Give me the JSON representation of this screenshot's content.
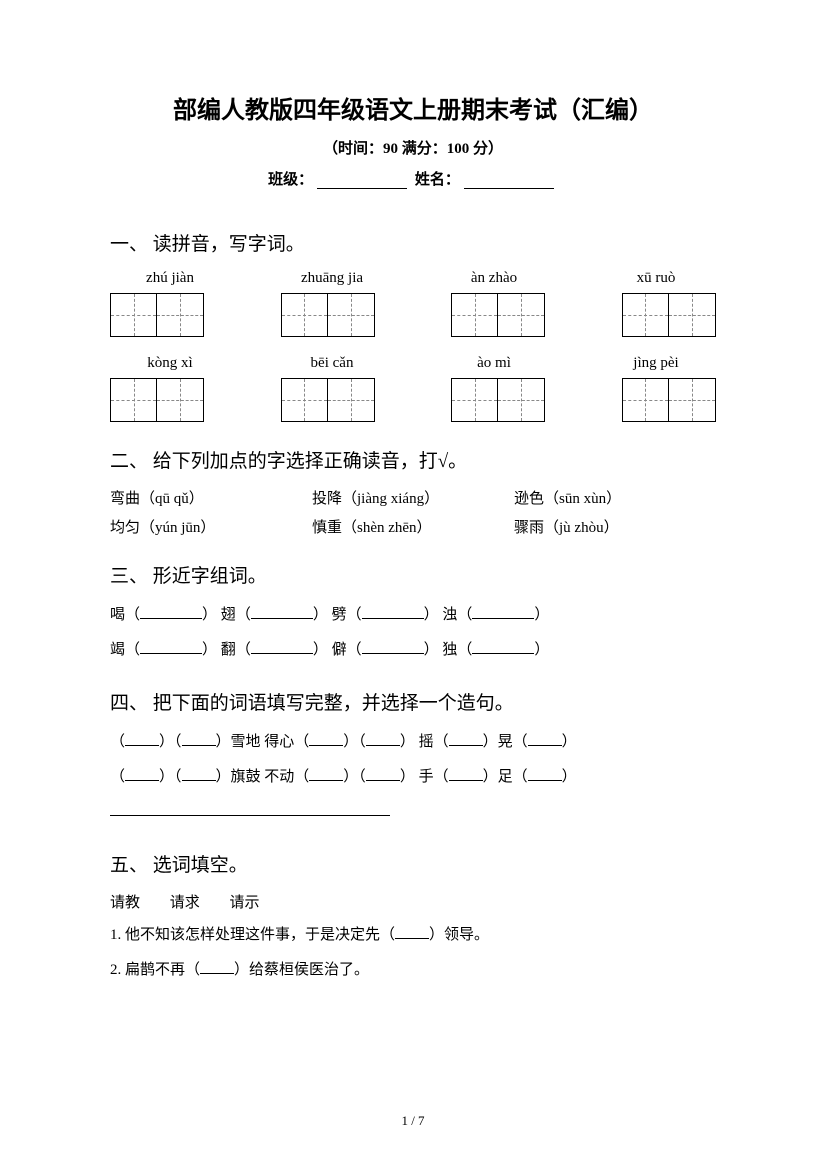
{
  "title": "部编人教版四年级语文上册期末考试（汇编）",
  "subtitle": "（时间：90  满分：100 分）",
  "info": {
    "class_label": "班级：",
    "name_label": "姓名："
  },
  "sections": {
    "s1": {
      "head": "一、 读拼音，写字词。",
      "row1": [
        "zhú jiàn",
        "zhuāng jia",
        "àn zhào",
        "xū ruò"
      ],
      "row2": [
        "kòng xì",
        "bēi cǎn",
        "ào mì",
        "jìng pèi"
      ]
    },
    "s2": {
      "head": "二、 给下列加点的字选择正确读音，打√。",
      "rows": [
        [
          "弯曲（qū qǔ）",
          "投降（jiàng xiáng）",
          "逊色（sūn xùn）"
        ],
        [
          "均匀（yún jūn）",
          "慎重（shèn zhēn）",
          "骤雨（jù zhòu）"
        ]
      ]
    },
    "s3": {
      "head": "三、 形近字组词。",
      "pairs": [
        [
          "喝",
          "翅",
          "劈",
          "浊"
        ],
        [
          "竭",
          "翻",
          "僻",
          "独"
        ]
      ]
    },
    "s4": {
      "head": "四、 把下面的词语填写完整，并选择一个造句。",
      "line1": [
        "（",
        "）（",
        "）雪地  得心（",
        "）（",
        "） 摇（",
        "）晃（",
        "）"
      ],
      "line2": [
        "（",
        "）（",
        "）旗鼓  不动（",
        "）（",
        "） 手（",
        "）足（",
        "）"
      ]
    },
    "s5": {
      "head": "五、 选词填空。",
      "words": [
        "请教",
        "请求",
        "请示"
      ],
      "q1": "1. 他不知该怎样处理这件事，于是决定先（",
      "q1_end": "）领导。",
      "q2": "2. 扁鹊不再（",
      "q2_end": "）给蔡桓侯医治了。"
    }
  },
  "page_num": "1 / 7"
}
